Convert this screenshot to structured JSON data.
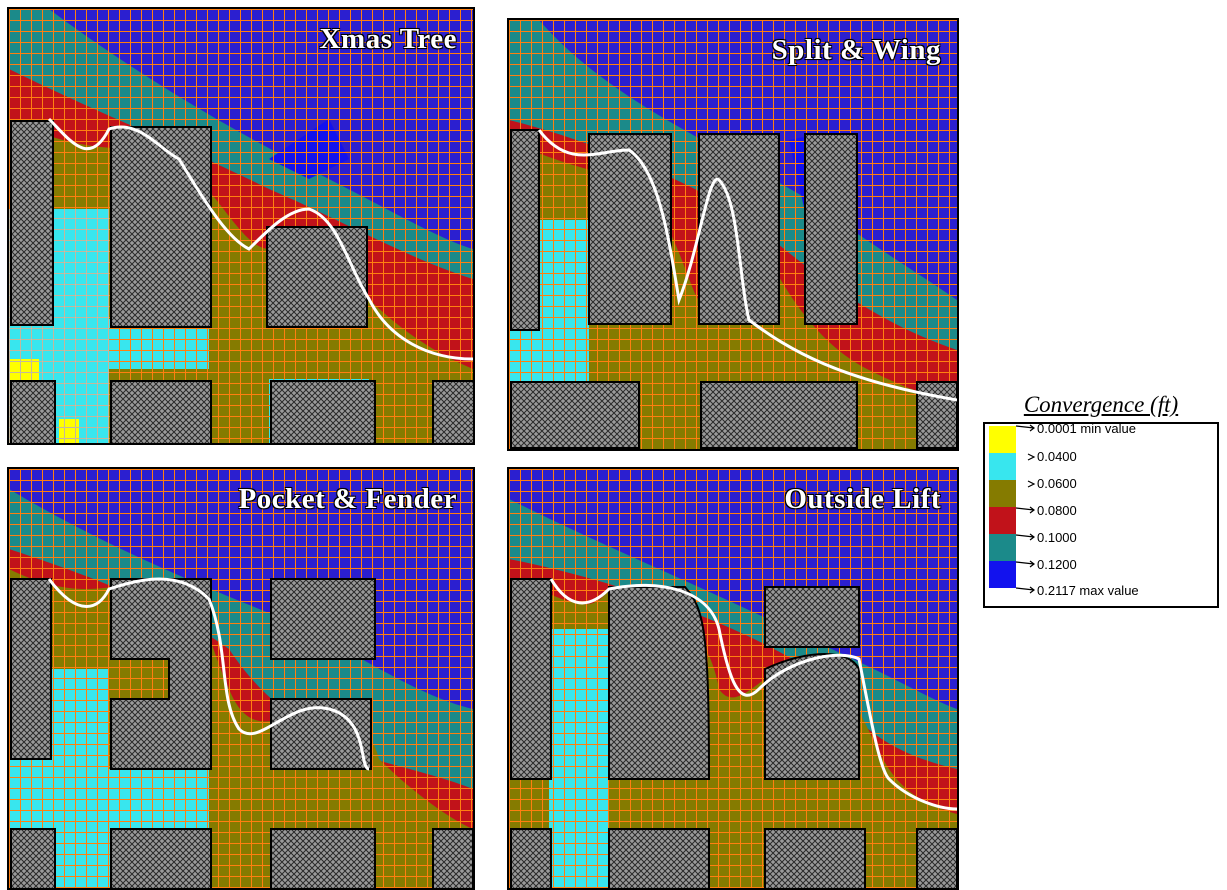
{
  "panels": [
    {
      "title": "Xmas Tree"
    },
    {
      "title": "Split & Wing"
    },
    {
      "title": "Pocket & Fender"
    },
    {
      "title": "Outside Lift"
    }
  ],
  "legend": {
    "title": "Convergence (ft)",
    "entries": [
      {
        "label": "0.0001 min value",
        "color": "#ffff00"
      },
      {
        "label": "0.0400",
        "color": "#38e6ee"
      },
      {
        "label": "0.0600",
        "color": "#857b00"
      },
      {
        "label": "0.0800",
        "color": "#c1121a"
      },
      {
        "label": "0.1000",
        "color": "#1b8a8a"
      },
      {
        "label": "0.1200",
        "color": "#1212ee"
      },
      {
        "label": "0.2117 max value",
        "color": "#1212ee"
      }
    ]
  },
  "colors": {
    "background_max": "#2b1fd0",
    "grid_orange": "#ff7f10",
    "pillar": "#8a8a8a",
    "contour": "#ffffff"
  }
}
